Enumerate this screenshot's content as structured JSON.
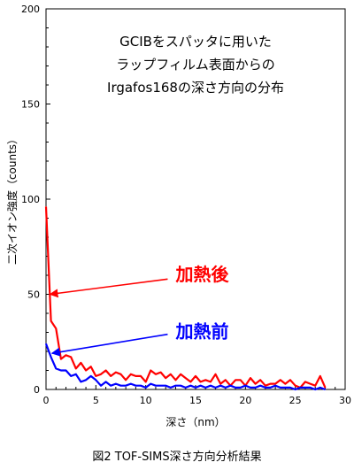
{
  "caption": "図2  TOF-SIMS深さ方向分析結果",
  "chart_data": {
    "type": "line",
    "title_lines": [
      "GCIBをスパッタに用いた",
      "ラップフィルム表面からの",
      "Irgafos168の深さ方向の分布"
    ],
    "xlabel": "深さ（nm）",
    "ylabel": "二次イオン強度（counts）",
    "xlim": [
      0,
      30
    ],
    "ylim": [
      0,
      200
    ],
    "xticks": [
      0,
      5,
      10,
      15,
      20,
      25,
      30
    ],
    "yticks": [
      0,
      50,
      100,
      150,
      200
    ],
    "grid": false,
    "series": [
      {
        "name": "加熱後",
        "color": "#ff0000",
        "x": [
          0,
          0.5,
          1,
          1.5,
          2,
          2.5,
          3,
          3.5,
          4,
          4.5,
          5,
          5.5,
          6,
          6.5,
          7,
          7.5,
          8,
          8.5,
          9,
          9.5,
          10,
          10.5,
          11,
          11.5,
          12,
          12.5,
          13,
          13.5,
          14,
          14.5,
          15,
          15.5,
          16,
          16.5,
          17,
          17.5,
          18,
          18.5,
          19,
          19.5,
          20,
          20.5,
          21,
          21.5,
          22,
          22.5,
          23,
          23.5,
          24,
          24.5,
          25,
          25.5,
          26,
          26.5,
          27,
          27.5,
          28
        ],
        "values": [
          96,
          36,
          32,
          16,
          18,
          17,
          11,
          14,
          10,
          12,
          7,
          8,
          10,
          7,
          9,
          8,
          5,
          8,
          7,
          7,
          4,
          10,
          8,
          9,
          6,
          8,
          5,
          8,
          6,
          4,
          7,
          4,
          5,
          4,
          8,
          3,
          5,
          2,
          5,
          5,
          2,
          6,
          3,
          5,
          2,
          3,
          3,
          5,
          3,
          5,
          2,
          1,
          4,
          3,
          2,
          7,
          1
        ]
      },
      {
        "name": "加熱前",
        "color": "#0000ff",
        "x": [
          0,
          0.5,
          1,
          1.5,
          2,
          2.5,
          3,
          3.5,
          4,
          4.5,
          5,
          5.5,
          6,
          6.5,
          7,
          7.5,
          8,
          8.5,
          9,
          9.5,
          10,
          10.5,
          11,
          11.5,
          12,
          12.5,
          13,
          13.5,
          14,
          14.5,
          15,
          15.5,
          16,
          16.5,
          17,
          17.5,
          18,
          18.5,
          19,
          19.5,
          20,
          20.5,
          21,
          21.5,
          22,
          22.5,
          23,
          23.5,
          24,
          24.5,
          25,
          25.5,
          26,
          26.5,
          27,
          27.5,
          28
        ],
        "values": [
          24,
          17,
          11,
          10,
          10,
          7,
          8,
          4,
          5,
          7,
          5,
          2,
          4,
          2,
          3,
          2,
          2,
          3,
          2,
          2,
          1,
          3,
          2,
          2,
          2,
          1,
          2,
          2,
          1,
          2,
          1,
          2,
          1,
          2,
          1,
          2,
          1,
          2,
          1,
          1,
          2,
          1,
          1,
          2,
          1,
          1,
          2,
          1,
          1,
          1,
          0,
          1,
          1,
          1,
          0,
          1,
          0
        ]
      }
    ],
    "annotations": [
      {
        "text": "加熱後",
        "color": "#ff0000",
        "text_x": 13,
        "text_y": 61,
        "arrow_from": [
          12.2,
          58
        ],
        "arrow_to": [
          0.4,
          50
        ]
      },
      {
        "text": "加熱前",
        "color": "#0000ff",
        "text_x": 13,
        "text_y": 31,
        "arrow_from": [
          12.2,
          29
        ],
        "arrow_to": [
          0.6,
          19
        ]
      }
    ]
  }
}
